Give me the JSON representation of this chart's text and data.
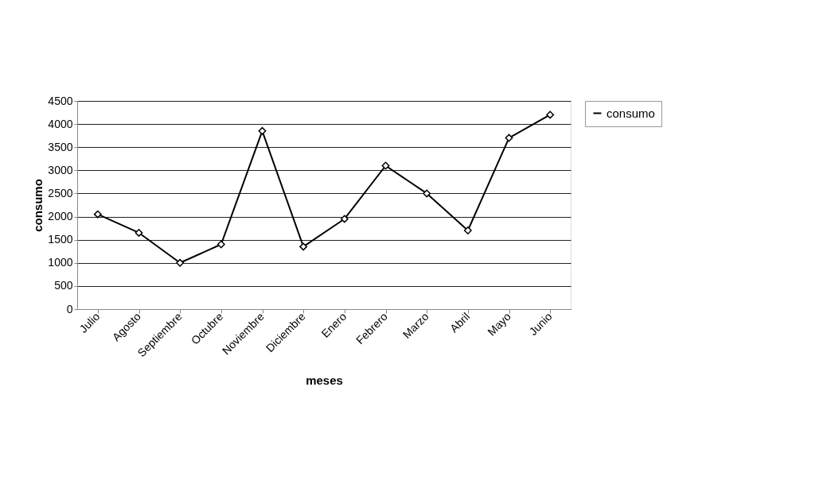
{
  "chart_data": {
    "type": "line",
    "xlabel": "meses",
    "ylabel": "consumo",
    "categories": [
      "Julio",
      "Agosto",
      "Septiembre",
      "Octubre",
      "Noviembre",
      "Diciembre",
      "Enero",
      "Febrero",
      "Marzo",
      "Abril",
      "Mayo",
      "Junio"
    ],
    "series": [
      {
        "name": "consumo",
        "color": "#000000",
        "values": [
          2050,
          1650,
          1000,
          1400,
          3850,
          1350,
          1950,
          3100,
          2500,
          1700,
          3700,
          4200
        ]
      }
    ],
    "ylim": [
      0,
      4500
    ],
    "yticks": [
      0,
      500,
      1000,
      1500,
      2000,
      2500,
      3000,
      3500,
      4000,
      4500
    ],
    "grid": "y",
    "legend": "right",
    "marker": "diamond",
    "line_style": "solid"
  }
}
